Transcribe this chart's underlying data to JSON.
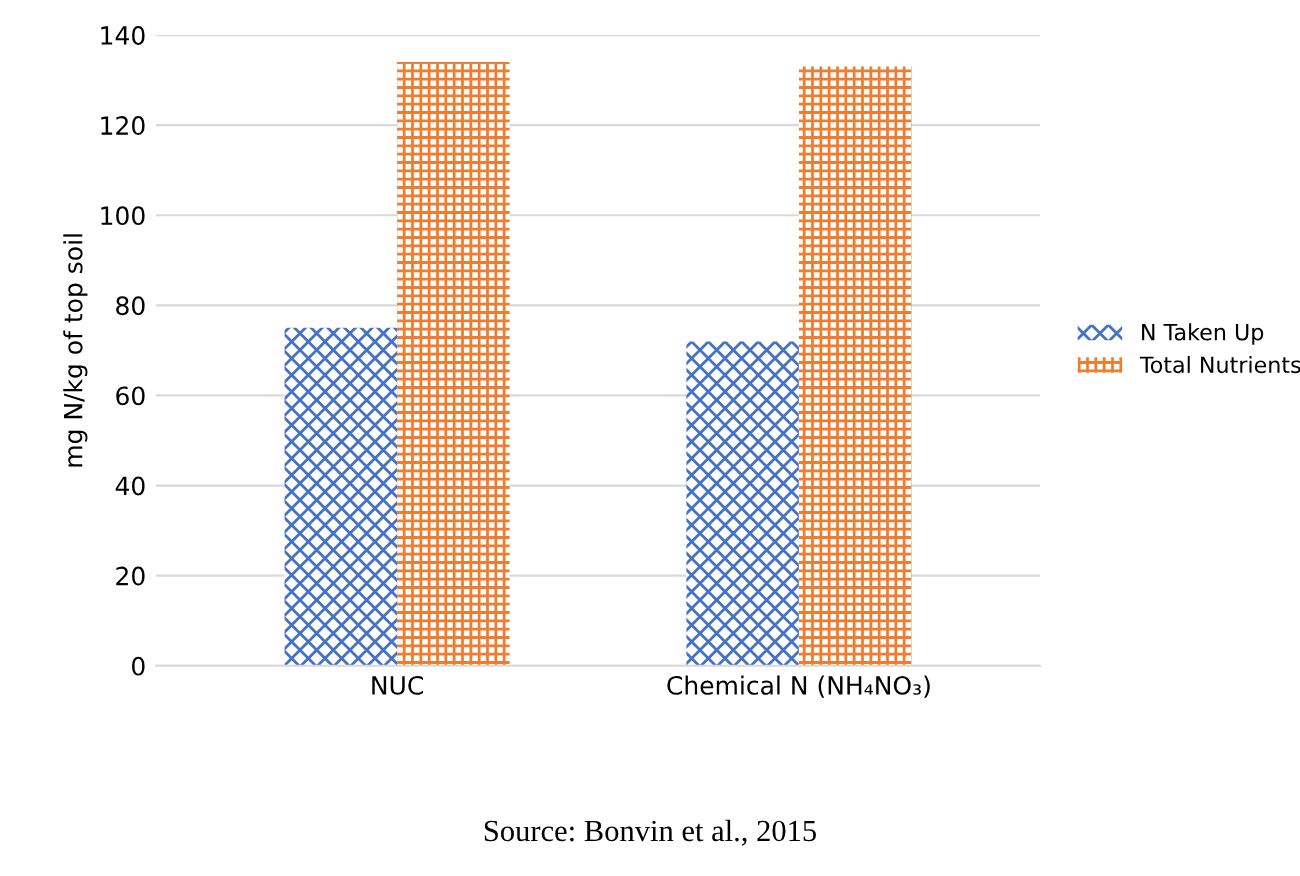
{
  "chart_data": {
    "type": "bar",
    "ylabel": "mg N/kg of top soil",
    "categories": [
      "NUC",
      "Chemical N (NH₄NO₃)"
    ],
    "series": [
      {
        "name": "N Taken Up",
        "color": "#4472c4",
        "values": [
          75,
          72
        ]
      },
      {
        "name": "Total Nutrients",
        "color": "#ed7d31",
        "values": [
          134,
          133
        ]
      }
    ],
    "ylim": [
      0,
      140
    ],
    "yticks": [
      0,
      20,
      40,
      60,
      80,
      100,
      120,
      140
    ],
    "grid": "y",
    "legend": "right",
    "annotations": [
      "Source: Bonvin et al., 2015"
    ]
  }
}
